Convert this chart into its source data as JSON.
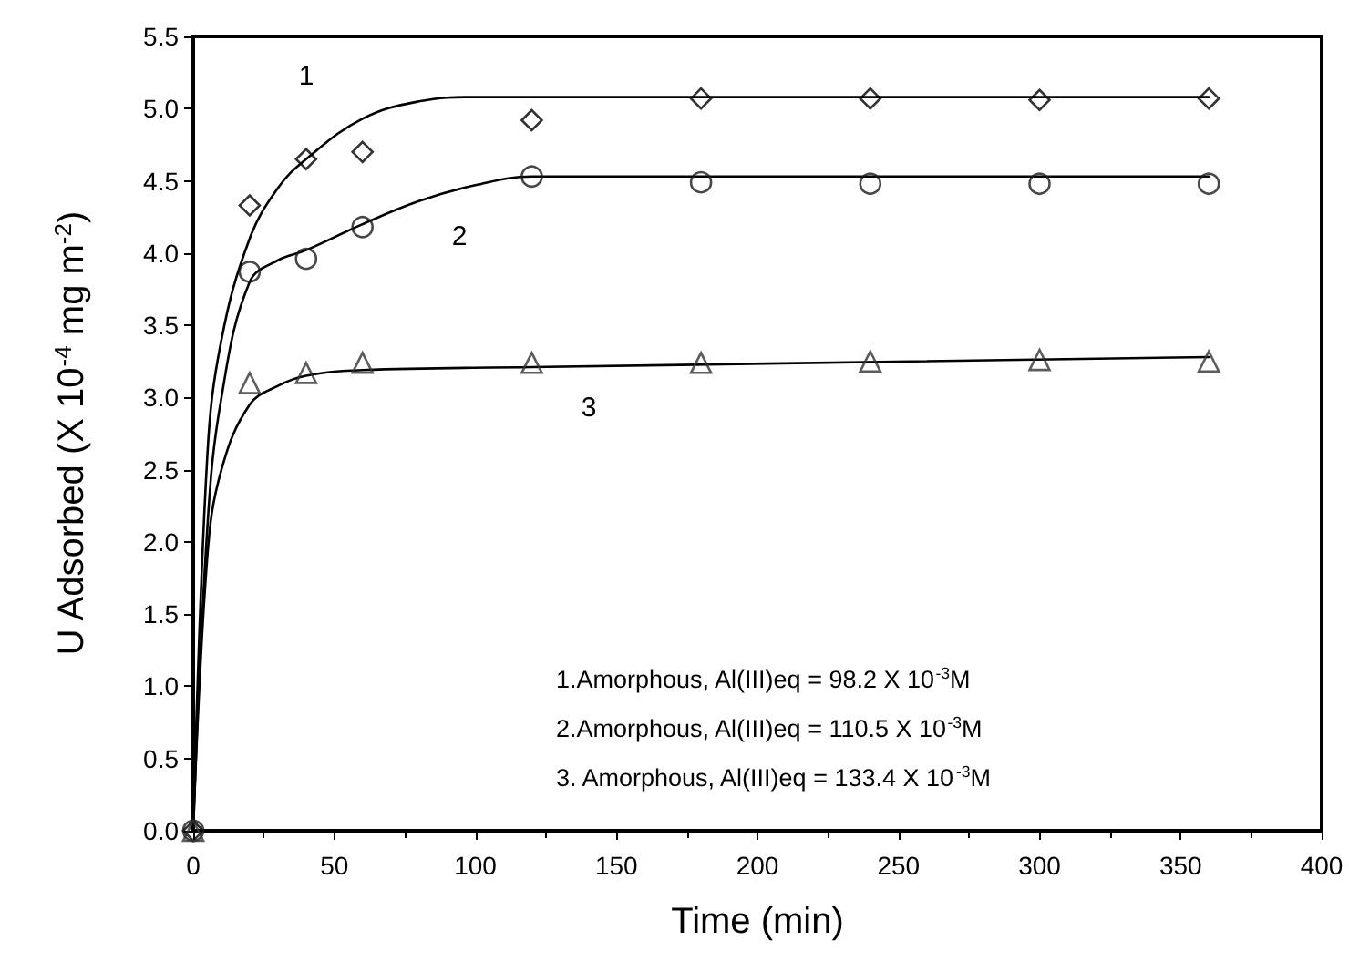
{
  "chart_data": {
    "type": "scatter",
    "xlabel": "Time (min)",
    "ylabel": "U Adsorbed (X 10$^{-4}$ mg m$^{-2}$)",
    "x": [
      0,
      20,
      40,
      60,
      120,
      180,
      240,
      300,
      360
    ],
    "xlim": [
      0,
      400
    ],
    "xticks": [
      0,
      50,
      100,
      150,
      200,
      250,
      300,
      350,
      400
    ],
    "ylim": [
      0,
      5.5
    ],
    "yticks": [
      {
        "value": 0,
        "label": "0.0"
      },
      0.5,
      {
        "value": 1,
        "label": "1.0"
      },
      1.5,
      {
        "value": 2,
        "label": "2.0"
      },
      2.5,
      {
        "value": 3,
        "label": "3.0"
      },
      3.5,
      {
        "value": 4,
        "label": "4.0"
      },
      4.5,
      {
        "value": 5,
        "label": "5.0"
      },
      5.5
    ],
    "grid": false,
    "series": [
      {
        "marker": "diamond",
        "color": "#000000",
        "values": [
          0,
          4.33,
          4.65,
          4.7,
          4.92,
          5.07,
          5.07,
          5.06,
          5.07
        ]
      },
      {
        "marker": "circle",
        "color": "#1a1a1a",
        "values": [
          0,
          3.87,
          3.96,
          4.18,
          4.53,
          4.49,
          4.48,
          4.48,
          4.48
        ]
      },
      {
        "marker": "triangle",
        "color": "#333333",
        "values": [
          0,
          3.1,
          3.17,
          3.24,
          3.24,
          3.24,
          3.25,
          3.26,
          3.25
        ]
      },
      {
        "type": "line",
        "marker": "none",
        "color": "#000000",
        "x": [
          0,
          5,
          10,
          20,
          30,
          40,
          60,
          80,
          100,
          120,
          360
        ],
        "values": [
          0,
          2.6,
          3.4,
          4.1,
          4.45,
          4.65,
          4.93,
          5.05,
          5.08,
          5.08,
          5.08
        ]
      },
      {
        "type": "line",
        "marker": "none",
        "color": "#000000",
        "x": [
          0,
          5,
          10,
          20,
          30,
          40,
          60,
          80,
          100,
          120,
          360
        ],
        "values": [
          0,
          2.1,
          3.0,
          3.8,
          3.95,
          4.02,
          4.2,
          4.36,
          4.47,
          4.53,
          4.53
        ]
      },
      {
        "type": "line",
        "marker": "none",
        "color": "#000000",
        "x": [
          0,
          5,
          10,
          20,
          30,
          40,
          60,
          120,
          360
        ],
        "values": [
          0,
          1.9,
          2.5,
          2.95,
          3.08,
          3.15,
          3.19,
          3.21,
          3.28
        ]
      }
    ],
    "annotations": [
      "1",
      "2",
      "3",
      "1.Amorphous, Al(III)eq = 98.2 X 10$^{-3}$M",
      "2.Amorphous, Al(III)eq = 110.5 X 10$^{-3}$M",
      "3. Amorphous, Al(III)eq = 133.4 X 10$^{-3}$M"
    ]
  }
}
